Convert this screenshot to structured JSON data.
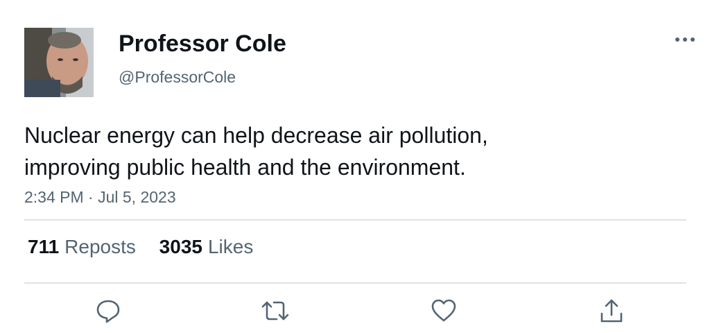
{
  "author": {
    "display_name": "Professor Cole",
    "handle": "@ProfessorCole",
    "avatar_alt": "profile photo"
  },
  "tweet": {
    "text_lines": [
      "Nuclear energy can help decrease air pollution,",
      "improving public health and the environment."
    ],
    "timestamp": "2:34 PM · Jul 5, 2023"
  },
  "stats": {
    "reposts_count": "711",
    "reposts_label": "Reposts",
    "likes_count": "3035",
    "likes_label": "Likes"
  },
  "icons": {
    "more": "more-horizontal-icon",
    "reply": "reply-icon",
    "repost": "repost-icon",
    "like": "heart-icon",
    "share": "share-icon"
  },
  "colors": {
    "text_primary": "#0f1419",
    "text_secondary": "#536471",
    "divider": "#dfe3e6"
  }
}
